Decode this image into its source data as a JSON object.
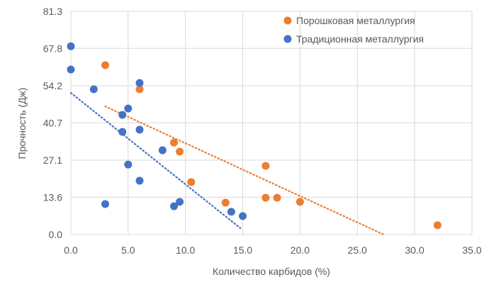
{
  "chart_data": {
    "type": "scatter",
    "title": "",
    "xlabel": "Количество карбидов (%)",
    "ylabel": "Прочность (Дж)",
    "xlim": [
      0,
      35
    ],
    "ylim": [
      0,
      81.3
    ],
    "xticks": [
      "0.0",
      "5.0",
      "10.0",
      "15.0",
      "20.0",
      "25.0",
      "30.0",
      "35.0"
    ],
    "yticks": [
      "0.0",
      "13.6",
      "27.1",
      "40.7",
      "54.2",
      "67.8",
      "81.3"
    ],
    "grid": true,
    "legend_position": "top-right",
    "series": [
      {
        "name": "Порошковая металлургия",
        "color": "#ED7D31",
        "points": [
          [
            3,
            61.7
          ],
          [
            6,
            52.9
          ],
          [
            9,
            33.5
          ],
          [
            9.5,
            30.2
          ],
          [
            10.5,
            19.1
          ],
          [
            13.5,
            11.6
          ],
          [
            17,
            25.0
          ],
          [
            17,
            13.4
          ],
          [
            18,
            13.4
          ],
          [
            20,
            11.9
          ],
          [
            32,
            3.4
          ]
        ],
        "trendline": {
          "style": "dotted",
          "from": [
            3,
            46.7
          ],
          "to": [
            27.3,
            0
          ]
        }
      },
      {
        "name": "Традиционная металлургия",
        "color": "#4472C4",
        "points": [
          [
            0,
            68.6
          ],
          [
            0,
            60.1
          ],
          [
            2,
            52.9
          ],
          [
            6,
            55.2
          ],
          [
            4.5,
            43.6
          ],
          [
            5,
            45.9
          ],
          [
            4.5,
            37.4
          ],
          [
            6,
            38.2
          ],
          [
            8,
            30.7
          ],
          [
            5,
            25.5
          ],
          [
            6,
            19.6
          ],
          [
            3,
            11.1
          ],
          [
            9,
            10.3
          ],
          [
            9.5,
            11.9
          ],
          [
            14,
            8.3
          ],
          [
            15,
            6.7
          ]
        ],
        "trendline": {
          "style": "dotted",
          "from": [
            0,
            51.6
          ],
          "to": [
            14.8,
            2.3
          ]
        }
      }
    ]
  }
}
